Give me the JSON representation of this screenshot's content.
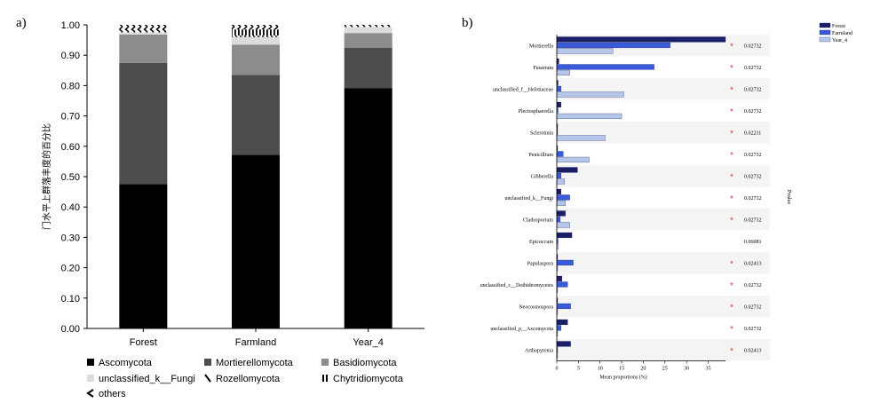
{
  "panel_labels": {
    "left": "a)",
    "right": "b)"
  },
  "chart_data": [
    {
      "type": "bar",
      "stacked": true,
      "ylabel": "门水平上群落丰度的百分比",
      "ylim": [
        0,
        1
      ],
      "yticks": [
        "0.00",
        "0.10",
        "0.20",
        "0.30",
        "0.40",
        "0.50",
        "0.60",
        "0.70",
        "0.80",
        "0.90",
        "1.00"
      ],
      "categories": [
        "Forest",
        "Farmland",
        "Year_4"
      ],
      "series": [
        {
          "name": "Ascomycota",
          "color": "#000000",
          "pattern": "solid",
          "values": [
            0.475,
            0.572,
            0.792
          ]
        },
        {
          "name": "Mortierellomycota",
          "color": "#4d4d4d",
          "pattern": "solid",
          "values": [
            0.4,
            0.263,
            0.133
          ]
        },
        {
          "name": "Basidiomycota",
          "color": "#8c8c8c",
          "pattern": "solid",
          "values": [
            0.093,
            0.1,
            0.048
          ]
        },
        {
          "name": "unclassified_k__Fungi",
          "color": "#dcdcdc",
          "pattern": "solid",
          "values": [
            0.007,
            0.025,
            0.02
          ]
        },
        {
          "name": "Rozellomycota",
          "color": "#000000",
          "pattern": "backslash",
          "values": [
            0.0,
            0.005,
            0.0
          ]
        },
        {
          "name": "Chytridiomycota",
          "color": "#000000",
          "pattern": "vertical",
          "values": [
            0.0,
            0.02,
            0.0
          ]
        },
        {
          "name": "others",
          "color": "#000000",
          "pattern": "chevron",
          "values": [
            0.025,
            0.015,
            0.007
          ]
        }
      ],
      "legend_position": "bottom"
    },
    {
      "type": "bar",
      "orientation": "horizontal",
      "xlabel": "Mean proportions (%)",
      "side_label": "Pvalue",
      "xlim": [
        0,
        39
      ],
      "xticks": [
        "0",
        "5",
        "10",
        "15",
        "20",
        "25",
        "30",
        "35"
      ],
      "categories": [
        "Mortierella",
        "Fusarium",
        "unclassified_f__Helotiaceae",
        "Plectosphaerella",
        "Sclerotinia",
        "Penicillium",
        "Gibberella",
        "unclassified_k__Fungi",
        "Cladosporium",
        "Epicoccum",
        "Papulaspora",
        "unclassified_c__Dothideomycetes",
        "Neocosmospora",
        "unclassified_p__Ascomycota",
        "Arthopyrenia"
      ],
      "series": [
        {
          "name": "Forest",
          "color": "#1a1f66",
          "values": [
            39.0,
            0.5,
            0.3,
            1.0,
            0.2,
            0.2,
            4.8,
            1.0,
            2.0,
            3.5,
            0.2,
            1.2,
            0.2,
            2.5,
            3.2
          ]
        },
        {
          "name": "Farmland",
          "color": "#3a5bd9",
          "values": [
            26.2,
            22.5,
            1.0,
            0.3,
            0.2,
            1.5,
            1.0,
            3.0,
            0.8,
            0.3,
            3.8,
            2.5,
            3.2,
            1.0,
            0.2
          ]
        },
        {
          "name": "Year_4",
          "color": "#b5c6e8",
          "values": [
            13.0,
            3.0,
            15.5,
            15.0,
            11.2,
            7.5,
            1.8,
            2.0,
            3.0,
            0.3,
            0.2,
            0.2,
            0.2,
            0.2,
            0.2
          ]
        }
      ],
      "significance": [
        "*",
        "*",
        "*",
        "*",
        "*",
        "*",
        "*",
        "*",
        "*",
        "",
        "*",
        "*",
        "*",
        "*",
        "*"
      ],
      "pvalues": [
        "0.02732",
        "0.02732",
        "0.02732",
        "0.02732",
        "0.02211",
        "0.02732",
        "0.02732",
        "0.02732",
        "0.02732",
        "0.06081",
        "0.02413",
        "0.02732",
        "0.02732",
        "0.02732",
        "0.02413"
      ],
      "legend_position": "top-right"
    }
  ]
}
